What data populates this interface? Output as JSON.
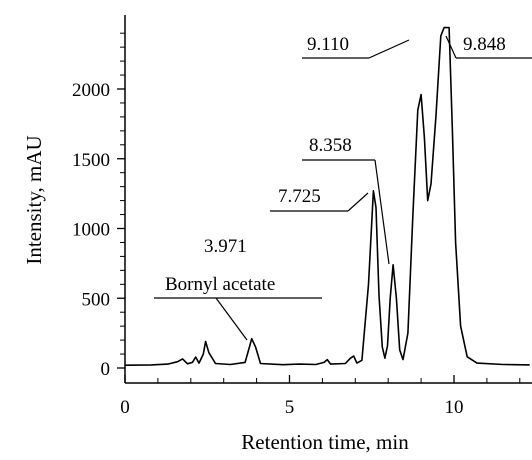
{
  "chart_data": {
    "type": "line",
    "xlabel": "Retention time, min",
    "ylabel": "Intensity, mAU",
    "xlim": [
      0,
      12.3
    ],
    "ylim": [
      -40,
      2450
    ],
    "x_ticks": [
      0,
      5,
      10
    ],
    "y_ticks": [
      0,
      500,
      1000,
      1500,
      2000
    ],
    "x_tick_labels": [
      "0",
      "5",
      "10"
    ],
    "y_tick_labels": [
      "0",
      "500",
      "1000",
      "1500",
      "2000"
    ],
    "grid": false,
    "legend": "none",
    "line_color": "#000000",
    "series": [
      {
        "points": [
          [
            0.0,
            20
          ],
          [
            0.8,
            22
          ],
          [
            1.3,
            28
          ],
          [
            1.6,
            45
          ],
          [
            1.75,
            65
          ],
          [
            1.9,
            30
          ],
          [
            2.05,
            40
          ],
          [
            2.15,
            78
          ],
          [
            2.25,
            35
          ],
          [
            2.38,
            100
          ],
          [
            2.45,
            190
          ],
          [
            2.55,
            110
          ],
          [
            2.75,
            32
          ],
          [
            3.2,
            25
          ],
          [
            3.65,
            40
          ],
          [
            3.78,
            150
          ],
          [
            3.85,
            210
          ],
          [
            3.97,
            150
          ],
          [
            4.12,
            32
          ],
          [
            4.8,
            24
          ],
          [
            5.3,
            28
          ],
          [
            5.8,
            25
          ],
          [
            6.05,
            40
          ],
          [
            6.15,
            60
          ],
          [
            6.25,
            28
          ],
          [
            6.7,
            32
          ],
          [
            6.85,
            70
          ],
          [
            6.95,
            85
          ],
          [
            7.05,
            35
          ],
          [
            7.2,
            55
          ],
          [
            7.4,
            600
          ],
          [
            7.55,
            1270
          ],
          [
            7.63,
            1150
          ],
          [
            7.72,
            520
          ],
          [
            7.82,
            150
          ],
          [
            7.9,
            70
          ],
          [
            7.98,
            160
          ],
          [
            8.06,
            500
          ],
          [
            8.15,
            740
          ],
          [
            8.25,
            500
          ],
          [
            8.35,
            130
          ],
          [
            8.45,
            60
          ],
          [
            8.6,
            250
          ],
          [
            8.75,
            1100
          ],
          [
            8.9,
            1850
          ],
          [
            9.0,
            1960
          ],
          [
            9.1,
            1650
          ],
          [
            9.2,
            1200
          ],
          [
            9.3,
            1320
          ],
          [
            9.45,
            1800
          ],
          [
            9.6,
            2380
          ],
          [
            9.7,
            2440
          ],
          [
            9.85,
            2440
          ],
          [
            9.95,
            1700
          ],
          [
            10.05,
            900
          ],
          [
            10.2,
            300
          ],
          [
            10.4,
            80
          ],
          [
            10.7,
            35
          ],
          [
            11.5,
            25
          ],
          [
            12.3,
            22
          ]
        ]
      }
    ],
    "annotations": [
      {
        "text": "3.971",
        "peak_x": 3.85,
        "peak_y": 210
      },
      {
        "text": "Bornyl acetate",
        "peak_x": 3.85,
        "peak_y": 210
      },
      {
        "text": "7.725",
        "peak_x": 7.5,
        "peak_y": 1220
      },
      {
        "text": "8.358",
        "peak_x": 8.15,
        "peak_y": 740
      },
      {
        "text": "9.110",
        "peak_x": 8.98,
        "peak_y": 1960
      },
      {
        "text": "9.848",
        "peak_x": 9.78,
        "peak_y": 2440
      }
    ]
  }
}
